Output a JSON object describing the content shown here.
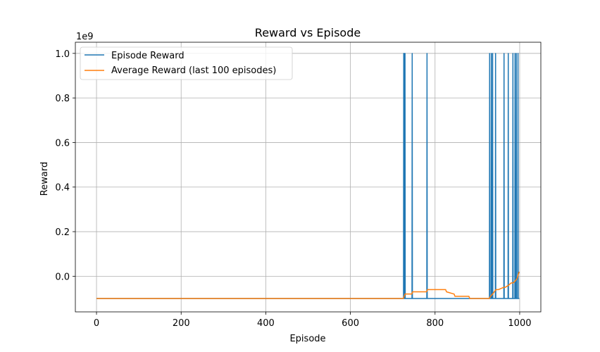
{
  "chart_data": {
    "type": "line",
    "title": "Reward vs Episode",
    "xlabel": "Episode",
    "ylabel": "Reward",
    "y_offset_label": "1e9",
    "xlim": [
      -50,
      1050
    ],
    "ylim": [
      -0.16,
      1.05
    ],
    "x_ticks": [
      0,
      200,
      400,
      600,
      800,
      1000
    ],
    "x_tick_labels": [
      "0",
      "200",
      "400",
      "600",
      "800",
      "1000"
    ],
    "y_ticks": [
      0.0,
      0.2,
      0.4,
      0.6,
      0.8,
      1.0
    ],
    "y_tick_labels": [
      "0.0",
      "0.2",
      "0.4",
      "0.6",
      "0.8",
      "1.0"
    ],
    "grid": true,
    "legend_position": "upper-left",
    "series": [
      {
        "name": "Episode Reward",
        "color": "#1f77b4",
        "baseline": -0.1,
        "x_range": [
          0,
          999
        ],
        "spikes": [
          {
            "x": 726,
            "y": 1.0
          },
          {
            "x": 727,
            "y": 1.0
          },
          {
            "x": 729,
            "y": 1.0
          },
          {
            "x": 746,
            "y": 1.0
          },
          {
            "x": 781,
            "y": 1.0
          },
          {
            "x": 929,
            "y": 1.0
          },
          {
            "x": 933,
            "y": 1.0
          },
          {
            "x": 936,
            "y": 1.0
          },
          {
            "x": 943,
            "y": 1.0
          },
          {
            "x": 963,
            "y": 1.0
          },
          {
            "x": 973,
            "y": 1.0
          },
          {
            "x": 984,
            "y": 1.0
          },
          {
            "x": 989,
            "y": 1.0
          },
          {
            "x": 992,
            "y": 1.0
          },
          {
            "x": 996,
            "y": 1.0
          }
        ]
      },
      {
        "name": "Average Reward (last 100 episodes)",
        "color": "#ff7f0e",
        "x": [
          0,
          725,
          727,
          729,
          745,
          747,
          780,
          782,
          825,
          827,
          845,
          847,
          880,
          882,
          928,
          931,
          936,
          940,
          944,
          950,
          962,
          966,
          974,
          980,
          985,
          990,
          994,
          997,
          999
        ],
        "y": [
          -0.1,
          -0.1,
          -0.09,
          -0.08,
          -0.08,
          -0.07,
          -0.07,
          -0.06,
          -0.06,
          -0.07,
          -0.08,
          -0.09,
          -0.09,
          -0.1,
          -0.1,
          -0.09,
          -0.08,
          -0.07,
          -0.06,
          -0.06,
          -0.05,
          -0.05,
          -0.04,
          -0.03,
          -0.03,
          -0.02,
          -0.01,
          0.01,
          0.02
        ]
      }
    ]
  }
}
